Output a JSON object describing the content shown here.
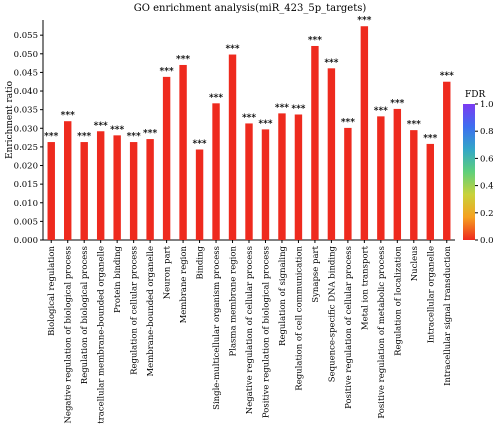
{
  "chart_data": {
    "type": "bar",
    "title": "GO enrichment analysis(miR_423_5p_targets)",
    "xlabel": "",
    "ylabel": "Enrichment ratio",
    "ylim": [
      0,
      0.058
    ],
    "yticks": [
      "0.000",
      "0.005",
      "0.010",
      "0.015",
      "0.020",
      "0.025",
      "0.030",
      "0.035",
      "0.040",
      "0.045",
      "0.050",
      "0.055"
    ],
    "grid": false,
    "bar_color": "#ee2a1e",
    "significance_label": "***",
    "categories": [
      "Biological regulation",
      "Negative regulation of biological process",
      "Regulation of biological process",
      "Intracellular membrane-bounded organelle",
      "Protein binding",
      "Regulation of cellular process",
      "Membrane-bounded organelle",
      "Neuron part",
      "Membrane region",
      "Binding",
      "Single-multicellular organism process",
      "Plasma membrane region",
      "Negative regulation of cellular process",
      "Positive regulation of biological process",
      "Regulation of signaling",
      "Regulation of cell communication",
      "Synapse part",
      "Sequence-specific DNA binding",
      "Positive regulation of cellular process",
      "Metal ion transport",
      "Positive regulation of metabolic process",
      "Regulation of localization",
      "Nucleus",
      "Intracellular organelle",
      "Intracellular signal transduction"
    ],
    "values": [
      0.0263,
      0.0319,
      0.0263,
      0.0292,
      0.0281,
      0.0263,
      0.0271,
      0.0438,
      0.047,
      0.0243,
      0.0367,
      0.0498,
      0.0313,
      0.0297,
      0.034,
      0.0337,
      0.0521,
      0.0461,
      0.0301,
      0.0574,
      0.0332,
      0.0352,
      0.0295,
      0.0258,
      0.0425
    ],
    "legend": {
      "title": "FDR",
      "position": "right",
      "ticks": [
        "1.0",
        "0.8",
        "0.6",
        "0.4",
        "0.2",
        "0.0"
      ],
      "colors": [
        "#7b3af2",
        "#3d6ff0",
        "#33a7c8",
        "#5fd07a",
        "#c9d23a",
        "#f5a020",
        "#ee2a1e"
      ]
    }
  }
}
